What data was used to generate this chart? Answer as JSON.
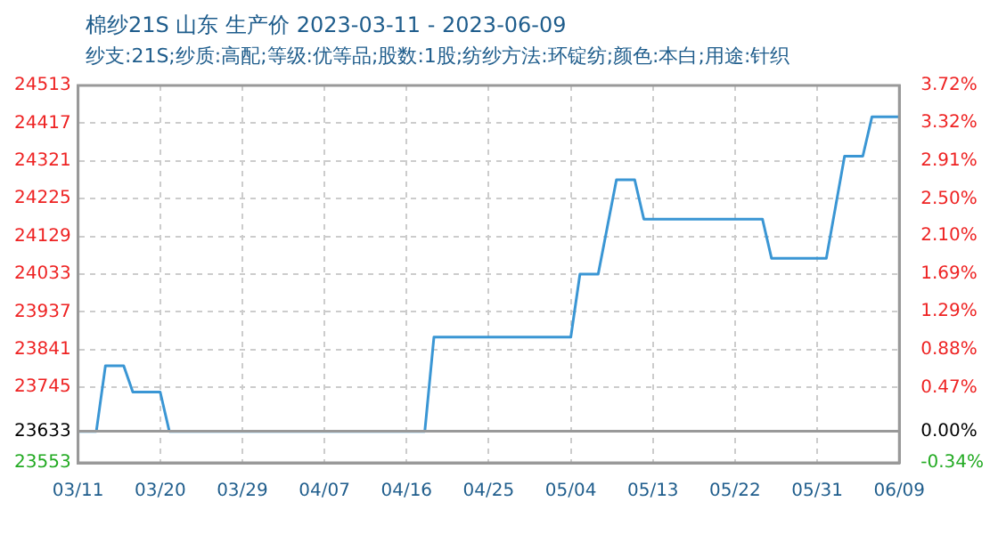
{
  "chart_data": {
    "type": "line",
    "title": "棉纱21S 山东 生产价 2023-03-11 - 2023-06-09",
    "subtitle": "纱支:21S;纱质:高配;等级:优等品;股数:1股;纺纱方法:环锭纺;颜色:本白;用途:针织",
    "x": [
      "2023-03-11",
      "2023-03-13",
      "2023-03-14",
      "2023-03-16",
      "2023-03-17",
      "2023-03-20",
      "2023-03-21",
      "2023-04-18",
      "2023-04-19",
      "2023-05-04",
      "2023-05-05",
      "2023-05-07",
      "2023-05-08",
      "2023-05-09",
      "2023-05-11",
      "2023-05-12",
      "2023-05-25",
      "2023-05-26",
      "2023-06-01",
      "2023-06-02",
      "2023-06-03",
      "2023-06-05",
      "2023-06-06",
      "2023-06-09"
    ],
    "series": [
      {
        "color": "#3a96d4",
        "values": [
          23633,
          23633,
          23800,
          23800,
          23733,
          23733,
          23633,
          23633,
          23873,
          23873,
          24033,
          24033,
          24153,
          24273,
          24273,
          24173,
          24173,
          24073,
          24073,
          24203,
          24333,
          24333,
          24433,
          24433
        ]
      }
    ],
    "xlim": [
      "2023-03-11",
      "2023-06-09"
    ],
    "xticks": [
      {
        "value": "2023-03-11",
        "label": "03/11"
      },
      {
        "value": "2023-03-20",
        "label": "03/20"
      },
      {
        "value": "2023-03-29",
        "label": "03/29"
      },
      {
        "value": "2023-04-07",
        "label": "04/07"
      },
      {
        "value": "2023-04-16",
        "label": "04/16"
      },
      {
        "value": "2023-04-25",
        "label": "04/25"
      },
      {
        "value": "2023-05-04",
        "label": "05/04"
      },
      {
        "value": "2023-05-13",
        "label": "05/13"
      },
      {
        "value": "2023-05-22",
        "label": "05/22"
      },
      {
        "value": "2023-05-31",
        "label": "05/31"
      },
      {
        "value": "2023-06-09",
        "label": "06/09"
      }
    ],
    "ylim": [
      23553,
      24513
    ],
    "yticks": [
      23553,
      23633,
      23745,
      23841,
      23937,
      24033,
      24129,
      24225,
      24321,
      24417,
      24513
    ],
    "y2lim": [
      -0.34,
      3.72
    ],
    "y2ticks": [
      {
        "value": -0.34,
        "label": "-0.34%"
      },
      {
        "value": 0,
        "label": "0.00%"
      },
      {
        "value": 0.47,
        "label": "0.47%"
      },
      {
        "value": 0.88,
        "label": "0.88%"
      },
      {
        "value": 1.29,
        "label": "1.29%"
      },
      {
        "value": 1.69,
        "label": "1.69%"
      },
      {
        "value": 2.1,
        "label": "2.10%"
      },
      {
        "value": 2.5,
        "label": "2.50%"
      },
      {
        "value": 2.91,
        "label": "2.91%"
      },
      {
        "value": 3.32,
        "label": "3.32%"
      },
      {
        "value": 3.72,
        "label": "3.72%"
      }
    ],
    "grid": true,
    "legend": false,
    "marker": "none",
    "line_style": "solid"
  }
}
